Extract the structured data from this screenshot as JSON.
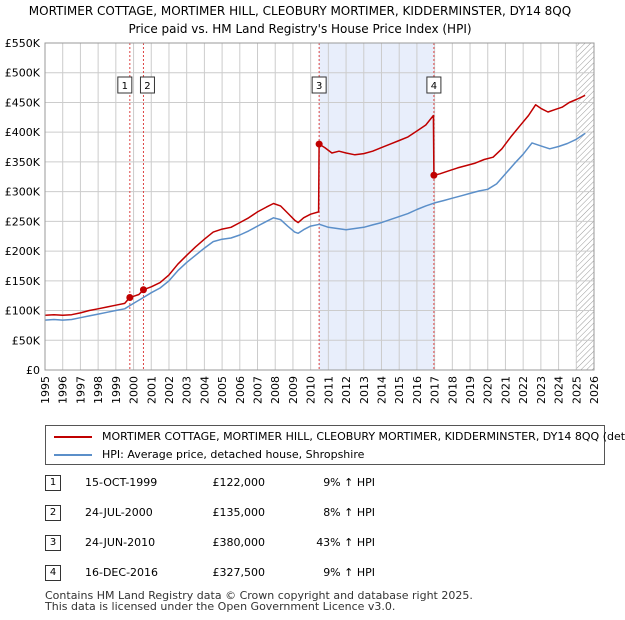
{
  "title_line1": "MORTIMER COTTAGE, MORTIMER HILL, CLEOBURY MORTIMER, KIDDERMINSTER, DY14 8QQ",
  "title_line2": "Price paid vs. HM Land Registry's House Price Index (HPI)",
  "colors": {
    "property": "#c00000",
    "hpi": "#5b8fc9",
    "shade": "#e8eefb",
    "grid": "#cccccc",
    "hatch": "#999999"
  },
  "chart_data": {
    "type": "line",
    "x_range": [
      1995,
      2026
    ],
    "y_range": [
      0,
      550000
    ],
    "y_ticks": [
      {
        "value": 0,
        "label": "£0"
      },
      {
        "value": 50000,
        "label": "£50K"
      },
      {
        "value": 100000,
        "label": "£100K"
      },
      {
        "value": 150000,
        "label": "£150K"
      },
      {
        "value": 200000,
        "label": "£200K"
      },
      {
        "value": 250000,
        "label": "£250K"
      },
      {
        "value": 300000,
        "label": "£300K"
      },
      {
        "value": 350000,
        "label": "£350K"
      },
      {
        "value": 400000,
        "label": "£400K"
      },
      {
        "value": 450000,
        "label": "£450K"
      },
      {
        "value": 500000,
        "label": "£500K"
      },
      {
        "value": 550000,
        "label": "£550K"
      }
    ],
    "x_ticks": [
      "1995",
      "1996",
      "1997",
      "1998",
      "1999",
      "2000",
      "2001",
      "2002",
      "2003",
      "2004",
      "2005",
      "2006",
      "2007",
      "2008",
      "2009",
      "2010",
      "2011",
      "2012",
      "2013",
      "2014",
      "2015",
      "2016",
      "2017",
      "2018",
      "2019",
      "2020",
      "2021",
      "2022",
      "2023",
      "2024",
      "2025",
      "2026"
    ],
    "shaded_period": [
      2010.48,
      2016.96
    ],
    "forecast_from": 2025.0,
    "series": [
      {
        "name": "MORTIMER COTTAGE, MORTIMER HILL, CLEOBURY MORTIMER, KIDDERMINSTER, DY14 8QQ (det",
        "color": "#c00000",
        "points": [
          [
            1995.0,
            92000
          ],
          [
            1995.5,
            93000
          ],
          [
            1996.0,
            92000
          ],
          [
            1996.5,
            93000
          ],
          [
            1997.0,
            96000
          ],
          [
            1997.5,
            100000
          ],
          [
            1998.0,
            103000
          ],
          [
            1998.5,
            106000
          ],
          [
            1999.0,
            109000
          ],
          [
            1999.5,
            112000
          ],
          [
            1999.79,
            122000
          ],
          [
            2000.0,
            124000
          ],
          [
            2000.3,
            127000
          ],
          [
            2000.56,
            135000
          ],
          [
            2001.0,
            140000
          ],
          [
            2001.5,
            147000
          ],
          [
            2002.0,
            160000
          ],
          [
            2002.5,
            178000
          ],
          [
            2003.0,
            193000
          ],
          [
            2003.5,
            207000
          ],
          [
            2004.0,
            220000
          ],
          [
            2004.5,
            232000
          ],
          [
            2005.0,
            237000
          ],
          [
            2005.5,
            240000
          ],
          [
            2006.0,
            248000
          ],
          [
            2006.5,
            256000
          ],
          [
            2007.0,
            266000
          ],
          [
            2007.5,
            274000
          ],
          [
            2007.9,
            280000
          ],
          [
            2008.3,
            276000
          ],
          [
            2008.7,
            264000
          ],
          [
            2009.1,
            252000
          ],
          [
            2009.3,
            248000
          ],
          [
            2009.6,
            256000
          ],
          [
            2010.0,
            262000
          ],
          [
            2010.45,
            266000
          ],
          [
            2010.48,
            380000
          ],
          [
            2010.8,
            374000
          ],
          [
            2011.2,
            365000
          ],
          [
            2011.6,
            368000
          ],
          [
            2012.0,
            365000
          ],
          [
            2012.5,
            362000
          ],
          [
            2013.0,
            364000
          ],
          [
            2013.5,
            368000
          ],
          [
            2014.0,
            374000
          ],
          [
            2014.5,
            380000
          ],
          [
            2015.0,
            386000
          ],
          [
            2015.5,
            392000
          ],
          [
            2016.0,
            402000
          ],
          [
            2016.5,
            412000
          ],
          [
            2016.93,
            428000
          ],
          [
            2016.96,
            327500
          ],
          [
            2017.3,
            330000
          ],
          [
            2017.8,
            335000
          ],
          [
            2018.3,
            340000
          ],
          [
            2018.8,
            344000
          ],
          [
            2019.3,
            348000
          ],
          [
            2019.8,
            354000
          ],
          [
            2020.3,
            358000
          ],
          [
            2020.8,
            372000
          ],
          [
            2021.3,
            392000
          ],
          [
            2021.8,
            410000
          ],
          [
            2022.3,
            428000
          ],
          [
            2022.7,
            446000
          ],
          [
            2023.0,
            440000
          ],
          [
            2023.4,
            434000
          ],
          [
            2023.8,
            438000
          ],
          [
            2024.2,
            442000
          ],
          [
            2024.6,
            450000
          ],
          [
            2025.0,
            455000
          ],
          [
            2025.3,
            459000
          ],
          [
            2025.5,
            462000
          ]
        ]
      },
      {
        "name": "HPI: Average price, detached house, Shropshire",
        "color": "#5b8fc9",
        "points": [
          [
            1995.0,
            84000
          ],
          [
            1995.5,
            85000
          ],
          [
            1996.0,
            84000
          ],
          [
            1996.5,
            85000
          ],
          [
            1997.0,
            88000
          ],
          [
            1997.5,
            91000
          ],
          [
            1998.0,
            94000
          ],
          [
            1998.5,
            97000
          ],
          [
            1999.0,
            100000
          ],
          [
            1999.5,
            103000
          ],
          [
            2000.0,
            112000
          ],
          [
            2000.5,
            121000
          ],
          [
            2001.0,
            130000
          ],
          [
            2001.5,
            138000
          ],
          [
            2002.0,
            150000
          ],
          [
            2002.5,
            167000
          ],
          [
            2003.0,
            181000
          ],
          [
            2003.5,
            193000
          ],
          [
            2004.0,
            205000
          ],
          [
            2004.5,
            216000
          ],
          [
            2005.0,
            220000
          ],
          [
            2005.5,
            222000
          ],
          [
            2006.0,
            227000
          ],
          [
            2006.5,
            234000
          ],
          [
            2007.0,
            242000
          ],
          [
            2007.5,
            250000
          ],
          [
            2007.9,
            256000
          ],
          [
            2008.3,
            253000
          ],
          [
            2008.7,
            242000
          ],
          [
            2009.1,
            232000
          ],
          [
            2009.3,
            230000
          ],
          [
            2009.6,
            236000
          ],
          [
            2010.0,
            242000
          ],
          [
            2010.5,
            245000
          ],
          [
            2011.0,
            240000
          ],
          [
            2011.5,
            238000
          ],
          [
            2012.0,
            236000
          ],
          [
            2012.5,
            238000
          ],
          [
            2013.0,
            240000
          ],
          [
            2013.5,
            244000
          ],
          [
            2014.0,
            248000
          ],
          [
            2014.5,
            253000
          ],
          [
            2015.0,
            258000
          ],
          [
            2015.5,
            263000
          ],
          [
            2016.0,
            270000
          ],
          [
            2016.5,
            276000
          ],
          [
            2017.0,
            281000
          ],
          [
            2017.5,
            285000
          ],
          [
            2018.0,
            289000
          ],
          [
            2018.5,
            293000
          ],
          [
            2019.0,
            297000
          ],
          [
            2019.5,
            301000
          ],
          [
            2020.0,
            304000
          ],
          [
            2020.5,
            313000
          ],
          [
            2021.0,
            330000
          ],
          [
            2021.5,
            347000
          ],
          [
            2022.0,
            363000
          ],
          [
            2022.5,
            382000
          ],
          [
            2023.0,
            377000
          ],
          [
            2023.5,
            372000
          ],
          [
            2024.0,
            376000
          ],
          [
            2024.5,
            381000
          ],
          [
            2025.0,
            388000
          ],
          [
            2025.5,
            398000
          ]
        ]
      }
    ],
    "markers": [
      {
        "label": "1",
        "x": 1999.79,
        "y": 122000
      },
      {
        "label": "2",
        "x": 2000.56,
        "y": 135000
      },
      {
        "label": "3",
        "x": 2010.48,
        "y": 380000
      },
      {
        "label": "4",
        "x": 2016.96,
        "y": 327500
      }
    ]
  },
  "legend": {
    "property_label": "MORTIMER COTTAGE, MORTIMER HILL, CLEOBURY MORTIMER, KIDDERMINSTER, DY14 8QQ (det",
    "hpi_label": "HPI: Average price, detached house, Shropshire"
  },
  "sales": [
    {
      "num": "1",
      "date": "15-OCT-1999",
      "price": "£122,000",
      "hpi": "9% ↑ HPI"
    },
    {
      "num": "2",
      "date": "24-JUL-2000",
      "price": "£135,000",
      "hpi": "8% ↑ HPI"
    },
    {
      "num": "3",
      "date": "24-JUN-2010",
      "price": "£380,000",
      "hpi": "43% ↑ HPI"
    },
    {
      "num": "4",
      "date": "16-DEC-2016",
      "price": "£327,500",
      "hpi": "9% ↑ HPI"
    }
  ],
  "footer_line1": "Contains HM Land Registry data © Crown copyright and database right 2025.",
  "footer_line2": "This data is licensed under the Open Government Licence v3.0."
}
